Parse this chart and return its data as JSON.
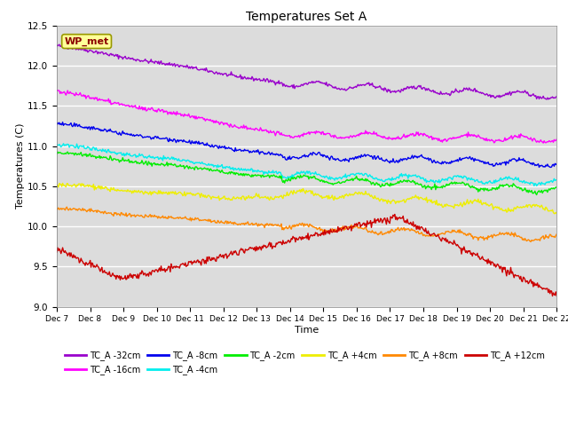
{
  "title": "Temperatures Set A",
  "xlabel": "Time",
  "ylabel": "Temperatures (C)",
  "ylim": [
    9.0,
    12.5
  ],
  "xlim": [
    0,
    15.5
  ],
  "x_tick_labels": [
    "Dec 7",
    "Dec 8",
    "Dec 9",
    "Dec 10",
    "Dec 11",
    "Dec 12",
    "Dec 13",
    "Dec 14",
    "Dec 15",
    "Dec 16",
    "Dec 17",
    "Dec 18",
    "Dec 19",
    "Dec 20",
    "Dec 21",
    "Dec 22"
  ],
  "annotation_text": "WP_met",
  "annotation_color": "#8B0000",
  "annotation_bg": "#FFFF99",
  "background_color": "#DCDCDC",
  "series": [
    {
      "label": "TC_A -32cm",
      "color": "#9900CC",
      "start": 12.25,
      "end": 11.62,
      "mid_val": 11.78,
      "style": "wavy_decrease"
    },
    {
      "label": "TC_A -16cm",
      "color": "#FF00FF",
      "start": 11.68,
      "end": 11.08,
      "mid_val": 11.15,
      "style": "wavy_decrease"
    },
    {
      "label": "TC_A -8cm",
      "color": "#0000EE",
      "start": 11.28,
      "end": 10.78,
      "mid_val": 10.88,
      "style": "wavy_decrease"
    },
    {
      "label": "TC_A -4cm",
      "color": "#00EEEE",
      "start": 11.02,
      "end": 10.55,
      "mid_val": 10.65,
      "style": "wavy_decrease"
    },
    {
      "label": "TC_A -2cm",
      "color": "#00EE00",
      "start": 10.92,
      "end": 10.45,
      "mid_val": 10.6,
      "style": "wavy_decrease"
    },
    {
      "label": "TC_A +4cm",
      "color": "#EEEE00",
      "start": 10.52,
      "end": 10.2,
      "mid_val": 10.35,
      "style": "wavy_flat"
    },
    {
      "label": "TC_A +8cm",
      "color": "#FF8800",
      "start": 10.22,
      "end": 9.85,
      "mid_val": 10.0,
      "style": "wavy_decrease"
    },
    {
      "label": "TC_A +12cm",
      "color": "#CC0000",
      "start": 9.72,
      "end": 9.15,
      "mid_val": 10.05,
      "style": "rise_then_fall"
    }
  ]
}
